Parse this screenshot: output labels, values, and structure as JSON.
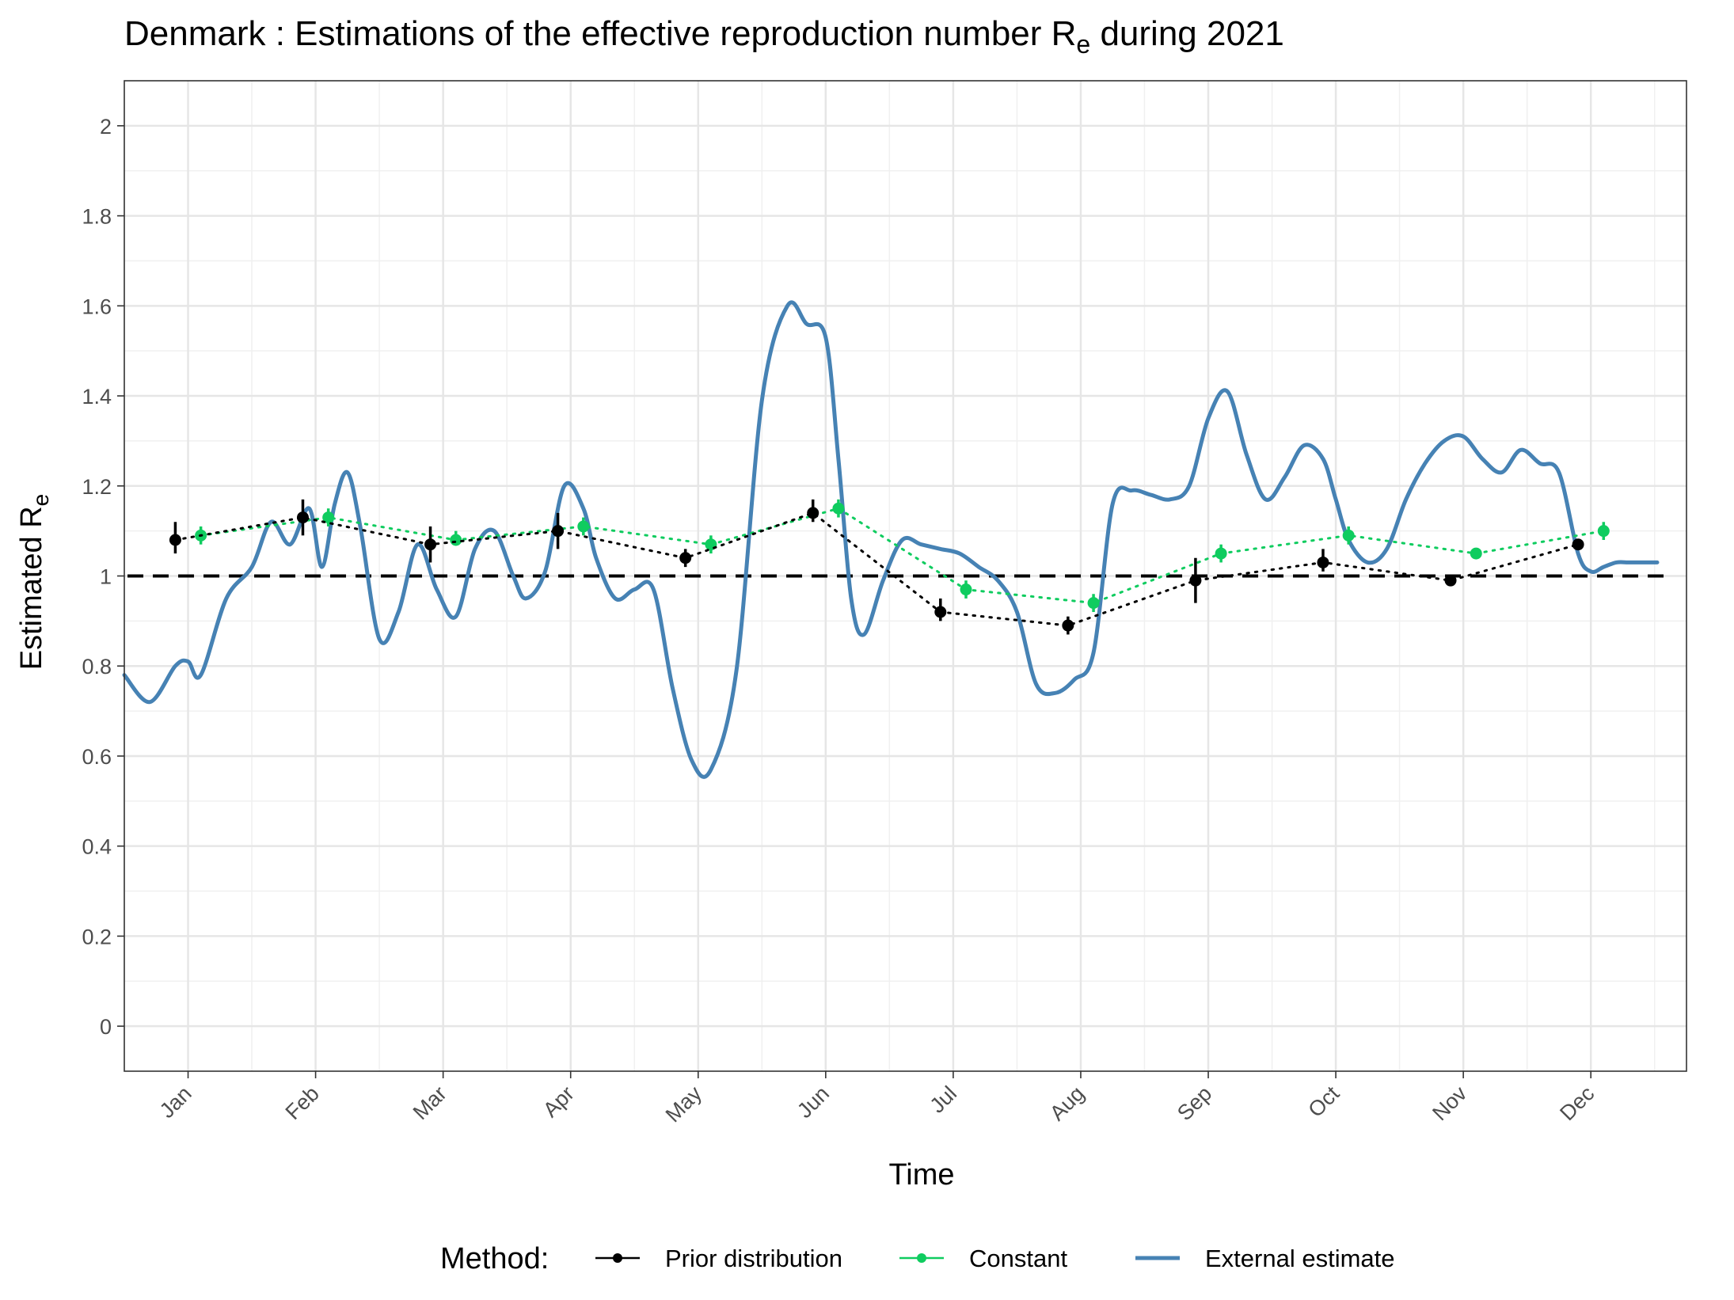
{
  "chart_data": {
    "type": "line",
    "title": "Denmark : Estimations of the effective reproduction number R",
    "title_subscript": "e",
    "title_suffix": " during 2021",
    "xlabel": "Time",
    "ylabel": "Estimated R",
    "ylabel_subscript": "e",
    "x_ticks": [
      "Jan",
      "Feb",
      "Mar",
      "Apr",
      "May",
      "Jun",
      "Jul",
      "Aug",
      "Sep",
      "Oct",
      "Nov",
      "Dec"
    ],
    "y_ticks": [
      "0",
      "0.2",
      "0.4",
      "0.6",
      "0.8",
      "1",
      "1.2",
      "1.4",
      "1.6",
      "1.8",
      "2"
    ],
    "y_tick_values": [
      0,
      0.2,
      0.4,
      0.6,
      0.8,
      1.0,
      1.2,
      1.4,
      1.6,
      1.8,
      2.0
    ],
    "xlim": [
      -0.5,
      11.75
    ],
    "ylim": [
      -0.1,
      2.1
    ],
    "grid": true,
    "reference_line": 1.0,
    "legend": {
      "title": "Method:",
      "position": "bottom",
      "entries": [
        "Prior distribution",
        "Constant",
        "External estimate"
      ]
    },
    "series": [
      {
        "name": "Prior distribution",
        "color": "#000000",
        "style": "points-with-dotted-line",
        "x": [
          -0.1,
          0.9,
          1.9,
          2.9,
          3.9,
          4.9,
          5.9,
          6.9,
          7.9,
          8.9,
          9.9,
          10.9
        ],
        "y": [
          1.08,
          1.13,
          1.07,
          1.1,
          1.04,
          1.14,
          0.92,
          0.89,
          0.99,
          1.03,
          0.99,
          1.07
        ],
        "lower": [
          1.05,
          1.09,
          1.03,
          1.06,
          1.02,
          1.12,
          0.9,
          0.87,
          0.94,
          1.01,
          0.98,
          1.06
        ],
        "upper": [
          1.12,
          1.17,
          1.11,
          1.14,
          1.06,
          1.17,
          0.95,
          0.91,
          1.04,
          1.06,
          1.0,
          1.08
        ]
      },
      {
        "name": "Constant",
        "color": "#0fcc5f",
        "style": "points-with-dotted-line",
        "x": [
          0.1,
          1.1,
          2.1,
          3.1,
          4.1,
          5.1,
          6.1,
          7.1,
          8.1,
          9.1,
          10.1,
          11.1
        ],
        "y": [
          1.09,
          1.13,
          1.08,
          1.11,
          1.07,
          1.15,
          0.97,
          0.94,
          1.05,
          1.09,
          1.05,
          1.1
        ],
        "lower": [
          1.07,
          1.11,
          1.07,
          1.09,
          1.05,
          1.13,
          0.95,
          0.92,
          1.03,
          1.07,
          1.04,
          1.08
        ],
        "upper": [
          1.11,
          1.15,
          1.1,
          1.13,
          1.09,
          1.17,
          0.99,
          0.96,
          1.07,
          1.11,
          1.06,
          1.12
        ]
      },
      {
        "name": "External estimate",
        "color": "#4682b4",
        "style": "line",
        "x": [
          -0.5,
          -0.3,
          -0.1,
          0.0,
          0.1,
          0.3,
          0.5,
          0.65,
          0.8,
          0.95,
          1.05,
          1.15,
          1.25,
          1.35,
          1.5,
          1.65,
          1.8,
          1.95,
          2.1,
          2.25,
          2.4,
          2.55,
          2.65,
          2.8,
          2.95,
          3.1,
          3.2,
          3.35,
          3.5,
          3.65,
          3.8,
          3.95,
          4.1,
          4.3,
          4.5,
          4.7,
          4.85,
          5.0,
          5.1,
          5.2,
          5.3,
          5.45,
          5.6,
          5.75,
          5.9,
          6.05,
          6.2,
          6.35,
          6.5,
          6.65,
          6.8,
          6.95,
          7.1,
          7.25,
          7.4,
          7.55,
          7.7,
          7.85,
          8.0,
          8.15,
          8.3,
          8.45,
          8.6,
          8.75,
          8.9,
          9.0,
          9.1,
          9.25,
          9.4,
          9.55,
          9.7,
          9.85,
          10.0,
          10.15,
          10.3,
          10.45,
          10.6,
          10.75,
          10.9,
          11.0,
          11.1,
          11.2,
          11.3,
          11.4,
          11.52
        ],
        "y": [
          0.78,
          0.72,
          0.8,
          0.81,
          0.78,
          0.95,
          1.02,
          1.12,
          1.07,
          1.15,
          1.02,
          1.16,
          1.23,
          1.11,
          0.86,
          0.92,
          1.07,
          0.97,
          0.91,
          1.06,
          1.1,
          1.0,
          0.95,
          1.01,
          1.2,
          1.15,
          1.04,
          0.95,
          0.97,
          0.97,
          0.75,
          0.59,
          0.57,
          0.79,
          1.39,
          1.6,
          1.56,
          1.53,
          1.26,
          0.95,
          0.87,
          0.99,
          1.08,
          1.07,
          1.06,
          1.05,
          1.02,
          0.99,
          0.92,
          0.76,
          0.74,
          0.77,
          0.83,
          1.16,
          1.19,
          1.18,
          1.17,
          1.2,
          1.35,
          1.41,
          1.27,
          1.17,
          1.22,
          1.29,
          1.26,
          1.17,
          1.08,
          1.03,
          1.06,
          1.17,
          1.25,
          1.3,
          1.31,
          1.26,
          1.23,
          1.28,
          1.25,
          1.23,
          1.05,
          1.01,
          1.02,
          1.03,
          1.03,
          1.03,
          1.03
        ]
      }
    ]
  }
}
